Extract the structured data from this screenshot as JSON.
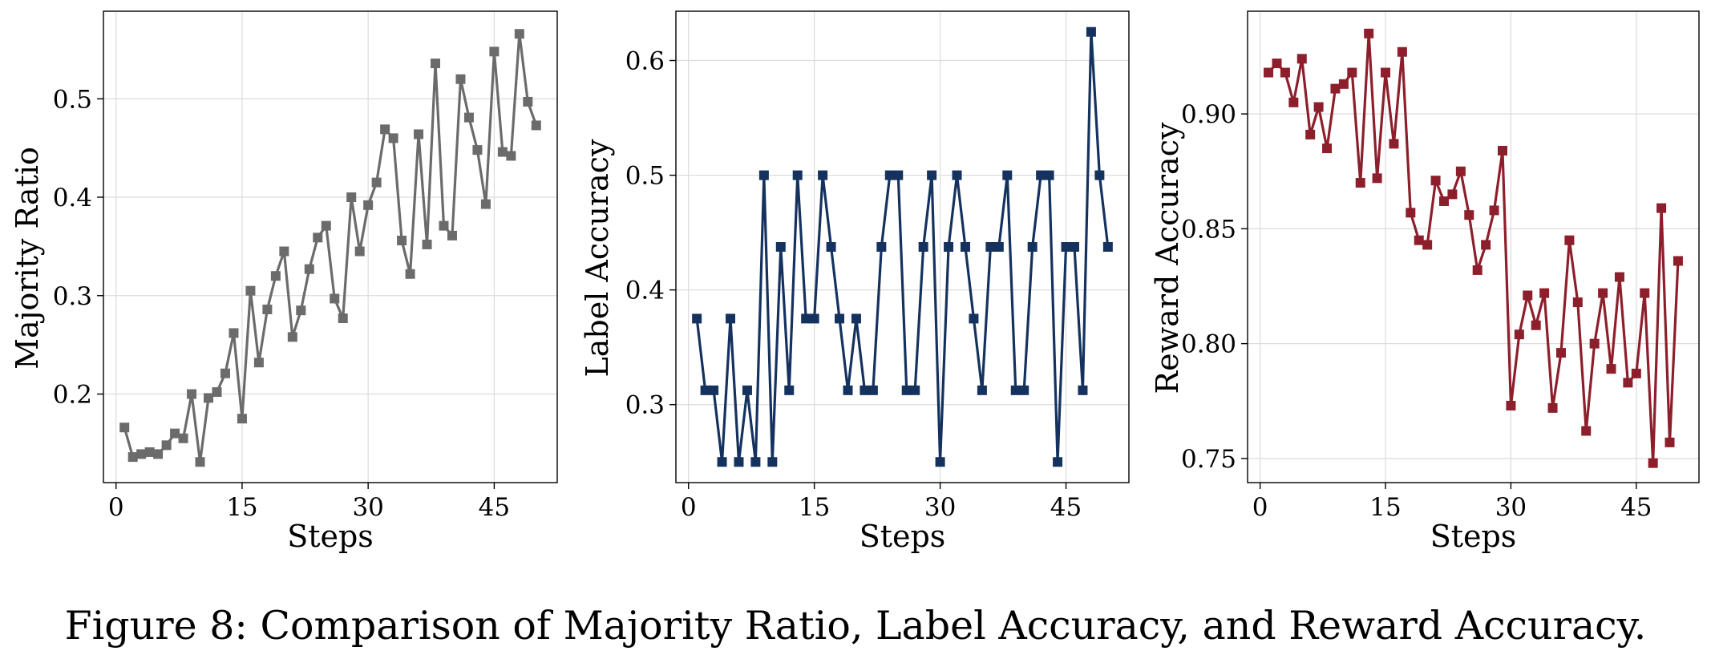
{
  "caption": "Figure 8: Comparison of Majority Ratio, Label Accuracy, and Reward Accuracy.",
  "chart_data": [
    {
      "type": "line",
      "title": "",
      "xlabel": "Steps",
      "ylabel": "Majority Ratio",
      "color": "#6b6b6b",
      "marker": "square",
      "grid": true,
      "xlim": [
        -1.5,
        52.5
      ],
      "ylim": [
        0.11,
        0.589
      ],
      "xticks": [
        0,
        15,
        30,
        45
      ],
      "xtick_labels": [
        "0",
        "15",
        "30",
        "45"
      ],
      "yticks": [
        0.2,
        0.3,
        0.4,
        0.5
      ],
      "ytick_labels": [
        "0.2",
        "0.3",
        "0.4",
        "0.5"
      ],
      "series": [
        {
          "name": "Majority Ratio",
          "x": [
            1,
            2,
            3,
            4,
            5,
            6,
            7,
            8,
            9,
            10,
            11,
            12,
            13,
            14,
            15,
            16,
            17,
            18,
            19,
            20,
            21,
            22,
            23,
            24,
            25,
            26,
            27,
            28,
            29,
            30,
            31,
            32,
            33,
            34,
            35,
            36,
            37,
            38,
            39,
            40,
            41,
            42,
            43,
            44,
            45,
            46,
            47,
            48,
            49,
            50
          ],
          "y": [
            0.166,
            0.136,
            0.139,
            0.141,
            0.139,
            0.148,
            0.16,
            0.155,
            0.2,
            0.131,
            0.196,
            0.202,
            0.221,
            0.262,
            0.175,
            0.305,
            0.232,
            0.286,
            0.32,
            0.345,
            0.258,
            0.285,
            0.327,
            0.359,
            0.371,
            0.297,
            0.277,
            0.4,
            0.345,
            0.392,
            0.415,
            0.469,
            0.46,
            0.356,
            0.322,
            0.464,
            0.352,
            0.536,
            0.371,
            0.361,
            0.52,
            0.481,
            0.448,
            0.393,
            0.548,
            0.446,
            0.442,
            0.566,
            0.497,
            0.473
          ]
        }
      ]
    },
    {
      "type": "line",
      "title": "",
      "xlabel": "Steps",
      "ylabel": "Label Accuracy",
      "color": "#15325f",
      "marker": "square",
      "grid": true,
      "xlim": [
        -1.5,
        52.5
      ],
      "ylim": [
        0.232,
        0.643
      ],
      "xticks": [
        0,
        15,
        30,
        45
      ],
      "xtick_labels": [
        "0",
        "15",
        "30",
        "45"
      ],
      "yticks": [
        0.3,
        0.4,
        0.5,
        0.6
      ],
      "ytick_labels": [
        "0.3",
        "0.4",
        "0.5",
        "0.6"
      ],
      "series": [
        {
          "name": "Label Accuracy",
          "x": [
            1,
            2,
            3,
            4,
            5,
            6,
            7,
            8,
            9,
            10,
            11,
            12,
            13,
            14,
            15,
            16,
            17,
            18,
            19,
            20,
            21,
            22,
            23,
            24,
            25,
            26,
            27,
            28,
            29,
            30,
            31,
            32,
            33,
            34,
            35,
            36,
            37,
            38,
            39,
            40,
            41,
            42,
            43,
            44,
            45,
            46,
            47,
            48,
            49,
            50
          ],
          "y": [
            0.375,
            0.3125,
            0.3125,
            0.25,
            0.375,
            0.25,
            0.3125,
            0.25,
            0.5,
            0.25,
            0.4375,
            0.3125,
            0.5,
            0.375,
            0.375,
            0.5,
            0.4375,
            0.375,
            0.3125,
            0.375,
            0.3125,
            0.3125,
            0.4375,
            0.5,
            0.5,
            0.3125,
            0.3125,
            0.4375,
            0.5,
            0.25,
            0.4375,
            0.5,
            0.4375,
            0.375,
            0.3125,
            0.4375,
            0.4375,
            0.5,
            0.3125,
            0.3125,
            0.4375,
            0.5,
            0.5,
            0.25,
            0.4375,
            0.4375,
            0.3125,
            0.625,
            0.5,
            0.4375
          ]
        }
      ]
    },
    {
      "type": "line",
      "title": "",
      "xlabel": "Steps",
      "ylabel": "Reward Accuracy",
      "color": "#8c1f2b",
      "marker": "square",
      "grid": true,
      "xlim": [
        -1.5,
        52.5
      ],
      "ylim": [
        0.7395,
        0.9447
      ],
      "xticks": [
        0,
        15,
        30,
        45
      ],
      "xtick_labels": [
        "0",
        "15",
        "30",
        "45"
      ],
      "yticks": [
        0.75,
        0.8,
        0.85,
        0.9
      ],
      "ytick_labels": [
        "0.75",
        "0.80",
        "0.85",
        "0.90"
      ],
      "series": [
        {
          "name": "Reward Accuracy",
          "x": [
            1,
            2,
            3,
            4,
            5,
            6,
            7,
            8,
            9,
            10,
            11,
            12,
            13,
            14,
            15,
            16,
            17,
            18,
            19,
            20,
            21,
            22,
            23,
            24,
            25,
            26,
            27,
            28,
            29,
            30,
            31,
            32,
            33,
            34,
            35,
            36,
            37,
            38,
            39,
            40,
            41,
            42,
            43,
            44,
            45,
            46,
            47,
            48,
            49,
            50
          ],
          "y": [
            0.918,
            0.922,
            0.918,
            0.905,
            0.924,
            0.891,
            0.903,
            0.885,
            0.911,
            0.913,
            0.918,
            0.87,
            0.935,
            0.872,
            0.918,
            0.887,
            0.927,
            0.857,
            0.845,
            0.843,
            0.871,
            0.862,
            0.865,
            0.875,
            0.856,
            0.832,
            0.843,
            0.858,
            0.884,
            0.773,
            0.804,
            0.821,
            0.808,
            0.822,
            0.772,
            0.796,
            0.845,
            0.818,
            0.762,
            0.8,
            0.822,
            0.789,
            0.829,
            0.783,
            0.787,
            0.822,
            0.748,
            0.859,
            0.757,
            0.836
          ]
        }
      ]
    }
  ]
}
